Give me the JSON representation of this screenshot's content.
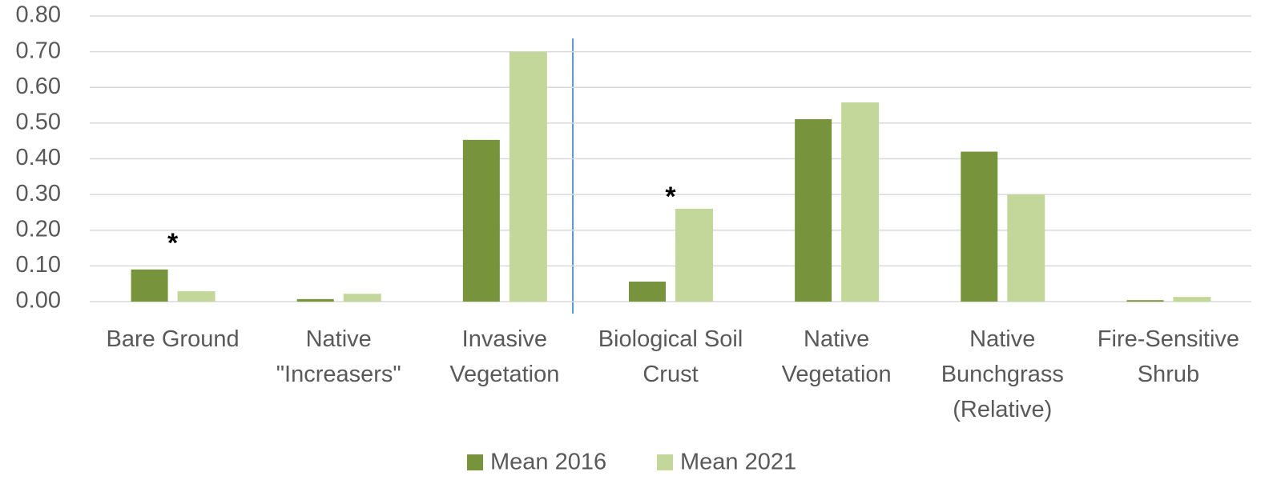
{
  "chart_data": {
    "type": "bar",
    "categories": [
      "Bare Ground",
      "Native \"Increasers\"",
      "Invasive Vegetation",
      "Biological Soil Crust",
      "Native Vegetation",
      "Native Bunchgrass (Relative)",
      "Fire-Sensitive Shrub"
    ],
    "series": [
      {
        "name": "Mean 2016",
        "color": "#77933c",
        "values": [
          0.09,
          0.007,
          0.453,
          0.056,
          0.511,
          0.42,
          0.004
        ]
      },
      {
        "name": "Mean 2021",
        "color": "#c4d79b",
        "values": [
          0.029,
          0.022,
          0.7,
          0.26,
          0.558,
          0.3,
          0.013
        ]
      }
    ],
    "annotations": [
      "*",
      "*"
    ],
    "ylim": [
      0,
      0.8
    ],
    "yticks": [
      {
        "value": 0,
        "label": "0.00"
      },
      {
        "value": 0.1,
        "label": "0.10"
      },
      {
        "value": 0.2,
        "label": "0.20"
      },
      {
        "value": 0.3,
        "label": "0.30"
      },
      {
        "value": 0.4,
        "label": "0.40"
      },
      {
        "value": 0.5,
        "label": "0.50"
      },
      {
        "value": 0.6,
        "label": "0.60"
      },
      {
        "value": 0.7,
        "label": "0.70"
      },
      {
        "value": 0.8,
        "label": "0.80"
      }
    ],
    "grid": true,
    "legend": "bottom"
  }
}
